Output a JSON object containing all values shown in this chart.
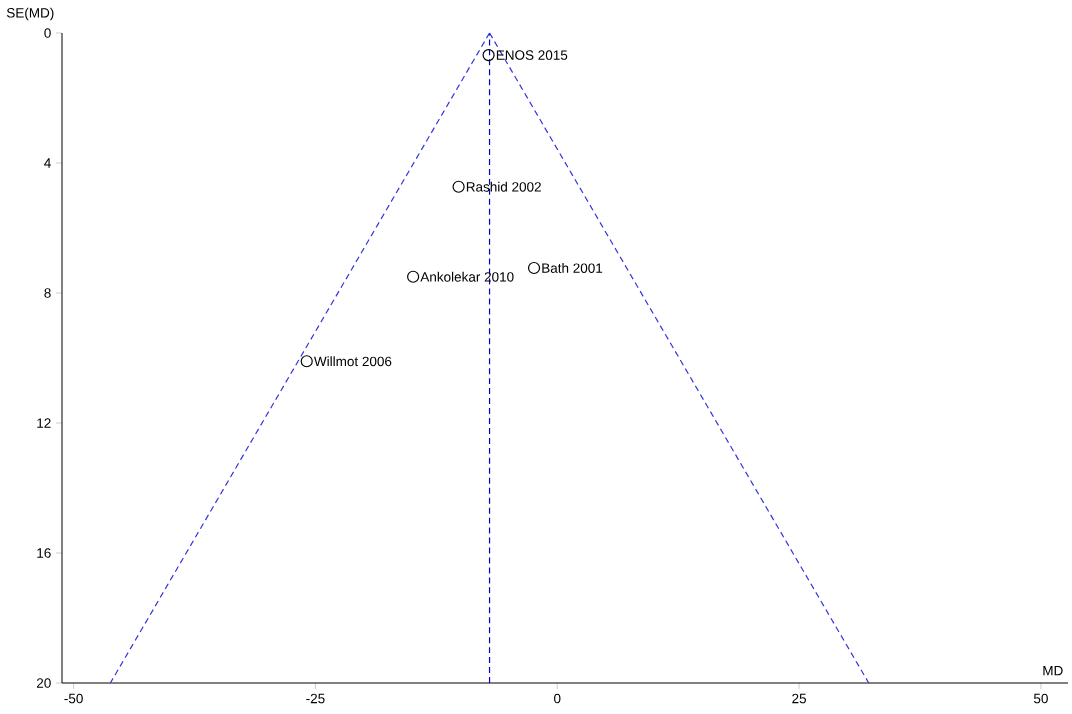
{
  "chart_data": {
    "type": "scatter",
    "xlabel": "MD",
    "ylabel": "SE(MD)",
    "xlim": [
      -51.2,
      52.8
    ],
    "ylim": [
      20,
      0
    ],
    "xticks": [
      -50,
      -25,
      0,
      25,
      50
    ],
    "yticks": [
      0,
      4,
      8,
      12,
      16,
      20
    ],
    "series": [
      {
        "color": "#000000",
        "marker": "circle",
        "x": [
          -7.1,
          -10.2,
          -14.9,
          -2.4,
          -25.9
        ],
        "values": [
          0.68,
          4.73,
          7.5,
          7.23,
          10.1
        ]
      },
      {
        "type": "line",
        "color": "#3333dd",
        "line_style": "dashed",
        "marker": "none",
        "x": [
          -7.0,
          -46.2
        ],
        "values": [
          0,
          20
        ]
      },
      {
        "type": "line",
        "color": "#3333dd",
        "line_style": "dashed",
        "marker": "none",
        "x": [
          -7.0,
          32.2
        ],
        "values": [
          0,
          20
        ]
      }
    ],
    "ref_lines": [
      {
        "axis": "x",
        "value": -7.0,
        "color": "#0000cc",
        "line_style": "dashed"
      }
    ],
    "annotations": [
      {
        "text": "ENOS 2015",
        "x": -7.1,
        "y": 0.68
      },
      {
        "text": "Rashid 2002",
        "x": -10.2,
        "y": 4.73
      },
      {
        "text": "Ankolekar 2010",
        "x": -14.9,
        "y": 7.5
      },
      {
        "text": "Bath 2001",
        "x": -2.4,
        "y": 7.23
      },
      {
        "text": "Willmot 2006",
        "x": -25.9,
        "y": 10.1
      }
    ]
  }
}
